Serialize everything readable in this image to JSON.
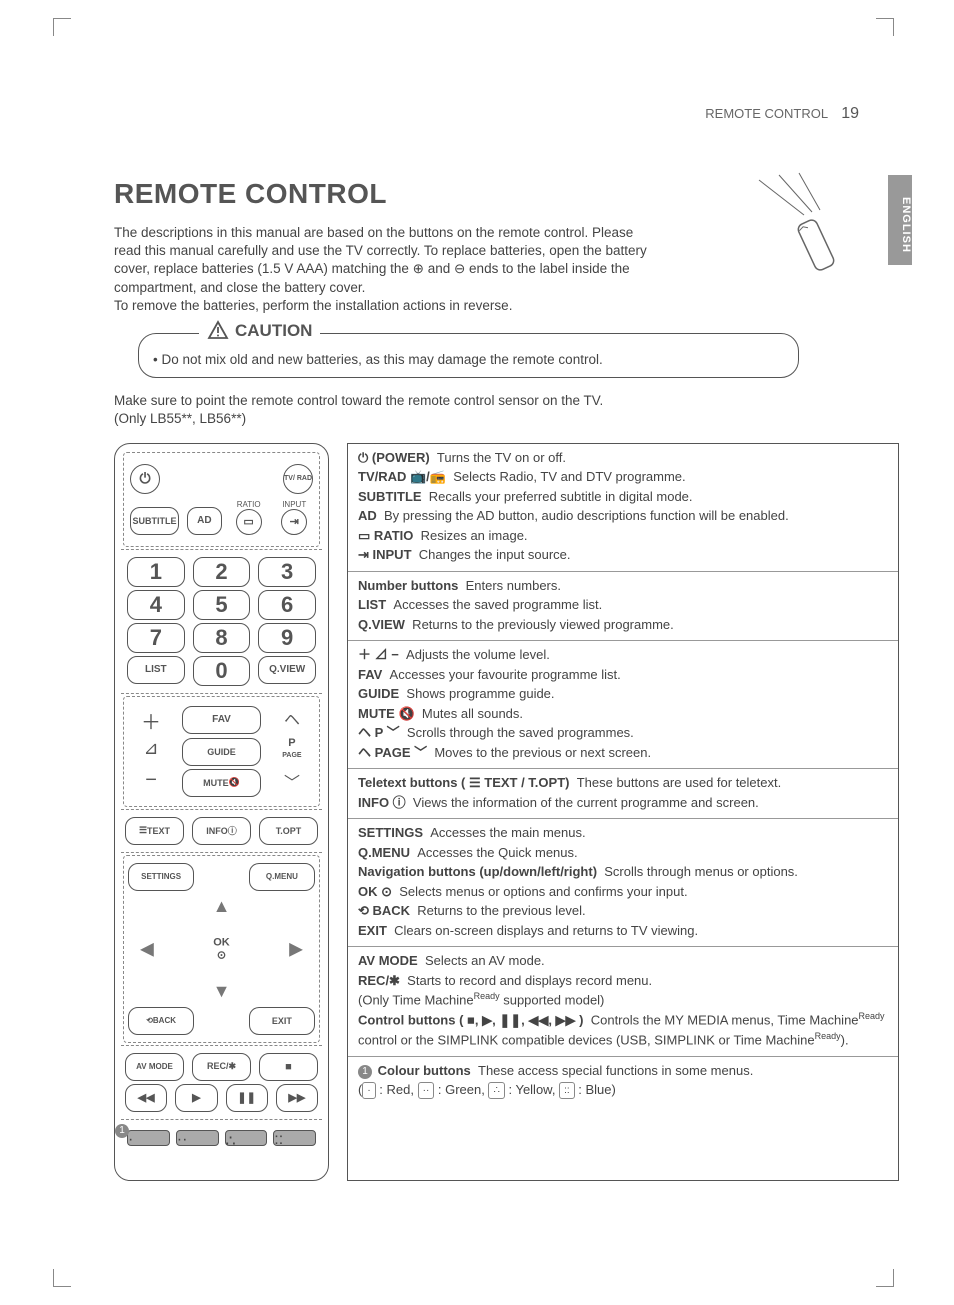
{
  "header": {
    "section": "REMOTE CONTROL",
    "page": "19"
  },
  "sideTab": "ENGLISH",
  "title": "REMOTE CONTROL",
  "intro": "The descriptions in this manual are based on the buttons on the remote control.  Please read this manual carefully and use the TV correctly. To replace batteries, open the battery cover, replace batteries (1.5 V AAA) matching the ⊕ and ⊖ ends to the label inside the compartment, and close the battery cover.\nTo remove the batteries, perform the installation actions in reverse.",
  "caution": {
    "label": "CAUTION",
    "text": "Do not mix old and new batteries, as this may damage the remote control."
  },
  "note": "Make sure to point the remote control toward the remote control sensor on the TV.\n(Only LB55**, LB56**)",
  "remote": {
    "row1": {
      "tvrad": "TV/\nRAD"
    },
    "row2": {
      "subtitle": "SUBTITLE",
      "ad": "AD",
      "ratioLbl": "RATIO",
      "inputLbl": "INPUT"
    },
    "nums": [
      [
        "1",
        "2",
        "3"
      ],
      [
        "4",
        "5",
        "6"
      ],
      [
        "7",
        "8",
        "9"
      ],
      [
        "LIST",
        "0",
        "Q.VIEW"
      ]
    ],
    "fav": "FAV",
    "guide": "GUIDE",
    "page": "PAGE",
    "p": "P",
    "mute": "MUTE",
    "text": "TEXT",
    "info": "INFO",
    "topt": "T.OPT",
    "settings": "SETTINGS",
    "qmenu": "Q.MENU",
    "ok": "OK",
    "back": "BACK",
    "exit": "EXIT",
    "avmode": "AV MODE",
    "rec": "REC/✱"
  },
  "desc": [
    [
      {
        "b": "⏻ (POWER)",
        "t": "Turns the TV on or off."
      },
      {
        "b": "TV/RAD 📺/📻",
        "t": "Selects Radio, TV and DTV programme."
      },
      {
        "b": "SUBTITLE",
        "t": "Recalls your preferred subtitle in digital mode."
      },
      {
        "b": "AD",
        "t": "By pressing the AD button, audio descriptions function will be enabled."
      },
      {
        "b": "▭ RATIO",
        "t": "Resizes an image."
      },
      {
        "b": "⇥ INPUT",
        "t": "Changes the input source."
      }
    ],
    [
      {
        "b": "Number buttons",
        "t": "Enters numbers."
      },
      {
        "b": "LIST",
        "t": "Accesses the saved programme list."
      },
      {
        "b": "Q.VIEW",
        "t": "Returns to the previously viewed programme."
      }
    ],
    [
      {
        "b": "＋ ⊿ −",
        "t": "Adjusts the volume level."
      },
      {
        "b": "FAV",
        "t": "Accesses your favourite programme list."
      },
      {
        "b": "GUIDE",
        "t": "Shows programme guide."
      },
      {
        "b": "MUTE 🔇",
        "t": "Mutes all sounds."
      },
      {
        "b": "ヘ P ﹀",
        "t": "Scrolls through the saved programmes."
      },
      {
        "b": "ヘ PAGE ﹀",
        "t": "Moves to the previous or next screen."
      }
    ],
    [
      {
        "b": "Teletext buttons ( ☰ TEXT / T.OPT)",
        "t": "These buttons are used for teletext."
      },
      {
        "b": "INFO ⓘ",
        "t": "Views the information of the current programme and screen."
      }
    ],
    [
      {
        "b": "SETTINGS",
        "t": "Accesses the main menus."
      },
      {
        "b": "Q.MENU",
        "t": "Accesses the Quick menus."
      },
      {
        "b": "Navigation buttons (up/down/left/right)",
        "t": "Scrolls through menus or options."
      },
      {
        "b": "OK ⊙",
        "t": "Selects menus or options and confirms your input."
      },
      {
        "b": "⟲ BACK",
        "t": "Returns to the previous level."
      },
      {
        "b": "EXIT",
        "t": "Clears on-screen displays and returns to TV viewing."
      }
    ],
    [
      {
        "b": "AV MODE",
        "t": "Selects an AV mode."
      },
      {
        "b": "REC/✱",
        "t": "Starts to record and displays record menu.\n(Only Time MachineReady supported model)"
      },
      {
        "b": "Control buttons ( ■, ▶, ❚❚, ◀◀, ▶▶ )",
        "t": "Controls the MY MEDIA menus, Time MachineReady control or the SIMPLINK compatible devices (USB, SIMPLINK or Time MachineReady)."
      }
    ],
    [
      {
        "b": "Colour buttons",
        "t": "These access special functions in some menus.",
        "pre": "1"
      },
      {
        "raw": "( ▪ : Red, ▪ : Green, ▪ : Yellow, ▪ : Blue)"
      }
    ]
  ]
}
